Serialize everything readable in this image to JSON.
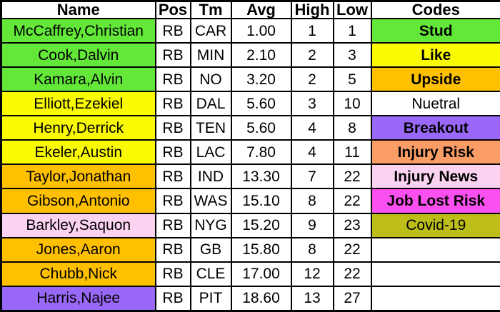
{
  "colors": {
    "green": "#63E83A",
    "yellow": "#FAFA05",
    "orange": "#FFC000",
    "pink": "#FBD2F0",
    "purple": "#9A68F8",
    "salmon": "#FA9C66",
    "magenta": "#FB50F0",
    "olive": "#BEBE1B",
    "white": "#FFFFFF",
    "border": "#000000",
    "text": "#000000"
  },
  "chart_data": {
    "type": "table",
    "columns": [
      "Name",
      "Pos",
      "Tm",
      "Avg",
      "High",
      "Low",
      "Codes"
    ],
    "rows": [
      {
        "name": "McCaffrey,Christian",
        "pos": "RB",
        "tm": "CAR",
        "avg": "1.00",
        "high": "1",
        "low": "1",
        "code": "Stud",
        "name_bg": "green",
        "code_bg": "green",
        "code_bold": true
      },
      {
        "name": "Cook,Dalvin",
        "pos": "RB",
        "tm": "MIN",
        "avg": "2.10",
        "high": "2",
        "low": "3",
        "code": "Like",
        "name_bg": "green",
        "code_bg": "yellow",
        "code_bold": true
      },
      {
        "name": "Kamara,Alvin",
        "pos": "RB",
        "tm": "NO",
        "avg": "3.20",
        "high": "2",
        "low": "5",
        "code": "Upside",
        "name_bg": "green",
        "code_bg": "orange",
        "code_bold": true
      },
      {
        "name": "Elliott,Ezekiel",
        "pos": "RB",
        "tm": "DAL",
        "avg": "5.60",
        "high": "3",
        "low": "10",
        "code": "Nuetral",
        "name_bg": "yellow",
        "code_bg": "white",
        "code_bold": false
      },
      {
        "name": "Henry,Derrick",
        "pos": "RB",
        "tm": "TEN",
        "avg": "5.60",
        "high": "4",
        "low": "8",
        "code": "Breakout",
        "name_bg": "yellow",
        "code_bg": "purple",
        "code_bold": true
      },
      {
        "name": "Ekeler,Austin",
        "pos": "RB",
        "tm": "LAC",
        "avg": "7.80",
        "high": "4",
        "low": "11",
        "code": "Injury Risk",
        "name_bg": "yellow",
        "code_bg": "salmon",
        "code_bold": true
      },
      {
        "name": "Taylor,Jonathan",
        "pos": "RB",
        "tm": "IND",
        "avg": "13.30",
        "high": "7",
        "low": "22",
        "code": "Injury News",
        "name_bg": "orange",
        "code_bg": "pink",
        "code_bold": true
      },
      {
        "name": "Gibson,Antonio",
        "pos": "RB",
        "tm": "WAS",
        "avg": "15.10",
        "high": "8",
        "low": "22",
        "code": "Job Lost Risk",
        "name_bg": "orange",
        "code_bg": "magenta",
        "code_bold": true
      },
      {
        "name": "Barkley,Saquon",
        "pos": "RB",
        "tm": "NYG",
        "avg": "15.20",
        "high": "9",
        "low": "23",
        "code": "Covid-19",
        "name_bg": "pink",
        "code_bg": "olive",
        "code_bold": false
      },
      {
        "name": "Jones,Aaron",
        "pos": "RB",
        "tm": "GB",
        "avg": "15.80",
        "high": "8",
        "low": "22",
        "code": "",
        "name_bg": "orange",
        "code_bg": "white",
        "code_bold": false
      },
      {
        "name": "Chubb,Nick",
        "pos": "RB",
        "tm": "CLE",
        "avg": "17.00",
        "high": "12",
        "low": "22",
        "code": "",
        "name_bg": "orange",
        "code_bg": "white",
        "code_bold": false
      },
      {
        "name": "Harris,Najee",
        "pos": "RB",
        "tm": "PIT",
        "avg": "18.60",
        "high": "13",
        "low": "27",
        "code": "",
        "name_bg": "purple",
        "code_bg": "white",
        "code_bold": false
      }
    ]
  }
}
